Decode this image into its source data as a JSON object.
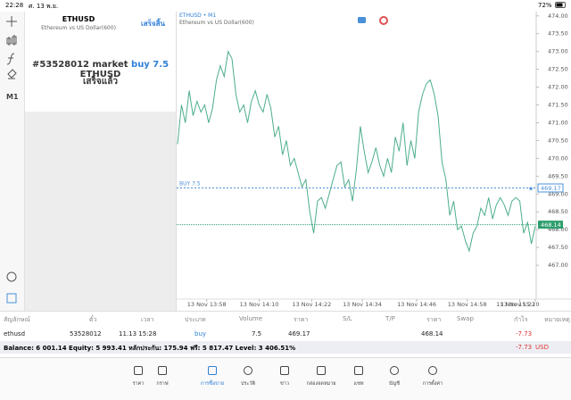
{
  "status_bar": {
    "time": "22:28",
    "date": "ศ. 13 พ.ย.",
    "battery": "72%"
  },
  "toolbar": {
    "timeframe": "M1"
  },
  "order_panel": {
    "symbol": "ETHUSD",
    "description": "Ethereum vs US Dollar(600)",
    "done": "เสร็จสิ้น",
    "message": [
      "#53528012 market",
      "buy 7.5",
      "ETHUSD"
    ],
    "status": "เสร็จแล้ว"
  },
  "chart_data": {
    "type": "line",
    "title": "ETHUSD • M1",
    "subtitle": "Ethereum vs US Dollar(600)",
    "xlim": [
      0,
      92
    ],
    "ylim": [
      466.1,
      474.12
    ],
    "xticks": [
      {
        "value": 7.5,
        "label": "13 Nov 13:58"
      },
      {
        "value": 21,
        "label": "13 Nov 14:10"
      },
      {
        "value": 34.5,
        "label": "13 Nov 14:22"
      },
      {
        "value": 47.5,
        "label": "13 Nov 14:34"
      },
      {
        "value": 61.5,
        "label": "13 Nov 14:46"
      },
      {
        "value": 74.5,
        "label": "13 Nov 14:58"
      },
      {
        "value": 88,
        "label": "13 Nov 15:10"
      },
      {
        "value": 101.5,
        "label": "13 Nov 15:22"
      }
    ],
    "yticks": [
      {
        "value": 474,
        "label": "474.00"
      },
      {
        "value": 473.5,
        "label": "473.50"
      },
      {
        "value": 473,
        "label": "473.00"
      },
      {
        "value": 472.5,
        "label": "472.50"
      },
      {
        "value": 472,
        "label": "472.00"
      },
      {
        "value": 471.5,
        "label": "471.50"
      },
      {
        "value": 471,
        "label": "471.00"
      },
      {
        "value": 470.5,
        "label": "470.50"
      },
      {
        "value": 470,
        "label": "470.00"
      },
      {
        "value": 469.5,
        "label": "469.50"
      },
      {
        "value": 469,
        "label": "469.00"
      },
      {
        "value": 468.5,
        "label": "468.50"
      },
      {
        "value": 468,
        "label": "468.00"
      },
      {
        "value": 467.5,
        "label": "467.50"
      },
      {
        "value": 467,
        "label": "467.00"
      }
    ],
    "series": [
      {
        "name": "ETHUSD",
        "color": "#4cae8a",
        "values": [
          470.4,
          471.5,
          471.0,
          471.9,
          471.2,
          471.6,
          471.3,
          471.5,
          471.0,
          471.4,
          472.2,
          472.6,
          472.3,
          473.0,
          472.8,
          471.8,
          471.3,
          471.5,
          471.0,
          471.6,
          471.9,
          471.5,
          471.3,
          471.8,
          471.4,
          470.6,
          470.9,
          470.1,
          470.5,
          469.8,
          470.0,
          469.6,
          469.2,
          469.4,
          468.5,
          467.9,
          468.8,
          468.9,
          468.6,
          469.0,
          469.4,
          469.8,
          469.9,
          469.2,
          469.4,
          468.8,
          469.7,
          470.9,
          470.2,
          469.6,
          469.9,
          470.3,
          469.8,
          469.5,
          470.0,
          469.6,
          470.6,
          470.2,
          471.0,
          469.8,
          470.5,
          470.0,
          471.3,
          471.8,
          472.1,
          472.2,
          471.8,
          471.2,
          469.9,
          469.4,
          468.4,
          468.8,
          468.0,
          468.1,
          467.7,
          467.4,
          467.9,
          468.1,
          468.6,
          468.4,
          468.9,
          468.3,
          468.7,
          468.9,
          468.7,
          468.4,
          468.8,
          468.9,
          468.8,
          467.9,
          468.2,
          467.6,
          468.1
        ]
      }
    ],
    "price_lines": [
      {
        "name": "BUY 7.5",
        "value": 469.17,
        "color": "#4a90d9"
      },
      {
        "value": 468.14,
        "color": "#2e9e6e"
      }
    ]
  },
  "table": {
    "headers": [
      "สัญลักษณ์",
      "ตั๋ว",
      "เวลา",
      "ประเภท",
      "Volume",
      "ราคา",
      "S/L",
      "T/P",
      "ราคา",
      "Swap",
      "กำไร",
      "หมายเหตุ"
    ],
    "row": [
      "ethusd",
      "53528012",
      "11.13 15:28",
      "buy",
      "7.5",
      "469.17",
      "",
      "",
      "468.14",
      "",
      "-7.73",
      ""
    ]
  },
  "balance": {
    "text": "Balance: 6 001.14 Equity: 5 993.41 หลักประกัน: 175.94 ฟรี: 5 817.47 Level: 3 406.51%",
    "profit": "-7.73",
    "currency": "USD"
  },
  "tabs": [
    "ราคา",
    "กราฟ",
    "การซื้อขาย",
    "ประวัติ",
    "ข่าว",
    "กล่องจดหมาย",
    "แชท",
    "บัญชี",
    "การตั้งค่า"
  ]
}
